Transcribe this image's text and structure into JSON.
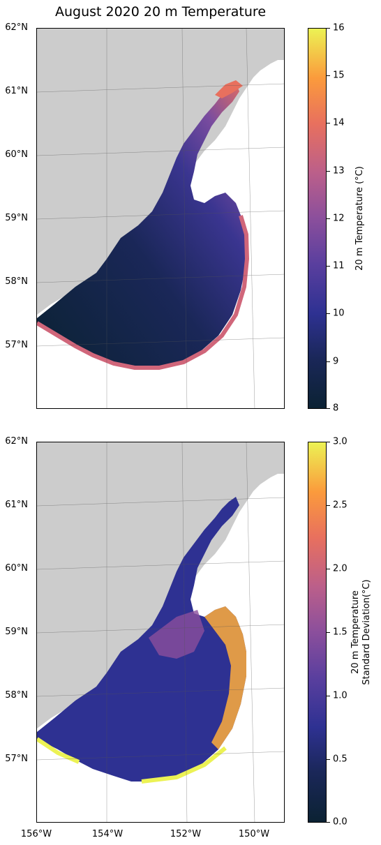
{
  "title": "August 2020 20 m Temperature",
  "latitude_labels": [
    "62°N",
    "61°N",
    "60°N",
    "59°N",
    "58°N",
    "57°N"
  ],
  "longitude_labels": [
    "156°W",
    "154°W",
    "152°W",
    "150°W"
  ],
  "colormap": "thermal",
  "land_color": "#cccccc",
  "panels": [
    {
      "name": "20 m Temperature",
      "colorbar": {
        "label": "20 m Temperature (°C)",
        "min": 8,
        "max": 16,
        "ticks": [
          "16",
          "15",
          "14",
          "13",
          "12",
          "11",
          "10",
          "9",
          "8"
        ]
      }
    },
    {
      "name": "20 m Temperature Standard Deviation",
      "colorbar": {
        "label_line1": "20 m Temperature",
        "label_line2": "Standard Deviation(°C)",
        "min": 0.0,
        "max": 3.0,
        "ticks": [
          "3.0",
          "2.5",
          "2.0",
          "1.5",
          "1.0",
          "0.5",
          "0.0"
        ]
      }
    }
  ]
}
